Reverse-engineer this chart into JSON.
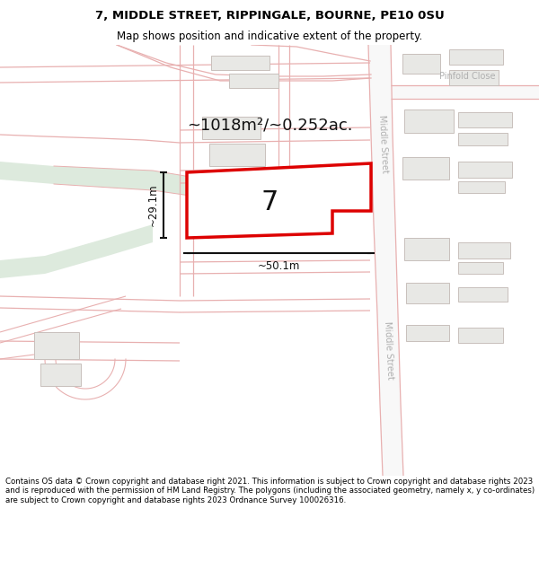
{
  "title_line1": "7, MIDDLE STREET, RIPPINGALE, BOURNE, PE10 0SU",
  "title_line2": "Map shows position and indicative extent of the property.",
  "footer_text": "Contains OS data © Crown copyright and database right 2021. This information is subject to Crown copyright and database rights 2023 and is reproduced with the permission of HM Land Registry. The polygons (including the associated geometry, namely x, y co-ordinates) are subject to Crown copyright and database rights 2023 Ordnance Survey 100026316.",
  "area_label": "~1018m²/~0.252ac.",
  "width_label": "~50.1m",
  "height_label": "~29.1m",
  "plot_number": "7",
  "bg_color": "#ffffff",
  "map_bg": "#f7f7f7",
  "road_fill": "#f8f8f8",
  "road_line": "#e8b0b0",
  "building_fill": "#e8e8e5",
  "building_outline": "#c8c0bc",
  "plot_fill": "#ffffff",
  "plot_outline": "#dd0000",
  "green_fill": "#ddeadd",
  "street_label_color": "#b0b0b0",
  "dim_color": "#111111",
  "title_fontsize": 9.5,
  "subtitle_fontsize": 8.5,
  "footer_fontsize": 6.2
}
